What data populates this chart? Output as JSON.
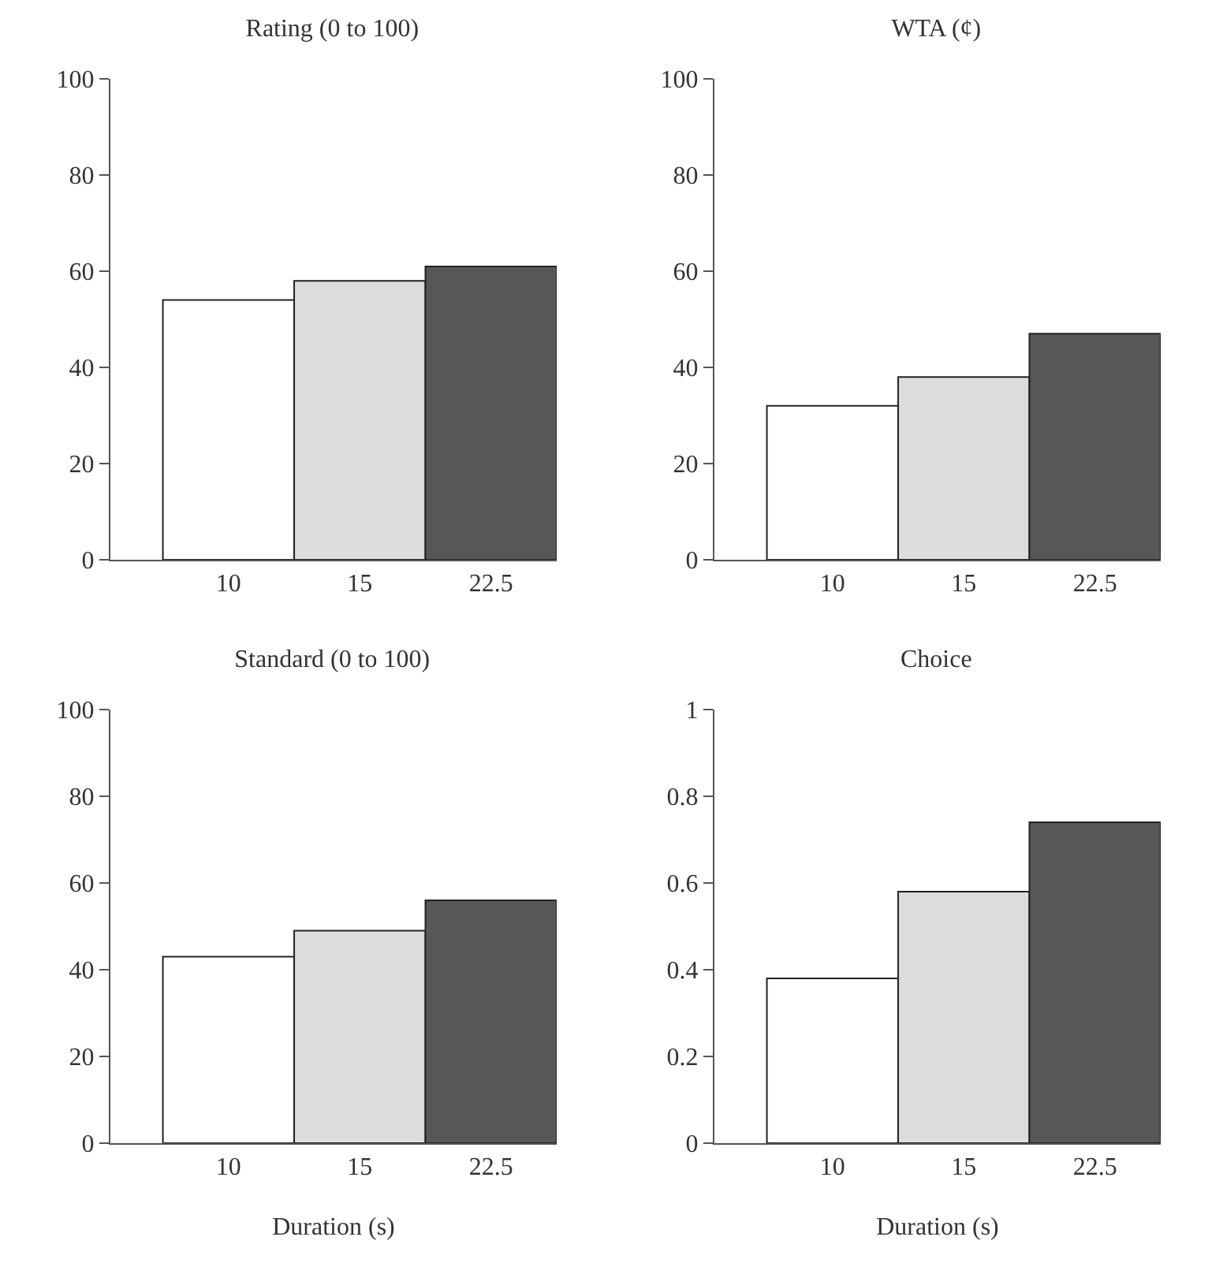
{
  "chart_data": [
    {
      "type": "bar",
      "title": "Rating (0 to 100)",
      "categories": [
        "10",
        "15",
        "22.5"
      ],
      "values": [
        54,
        58,
        61
      ],
      "colors": [
        "#ffffff",
        "#dcdcdc",
        "#575757"
      ],
      "ylim": [
        0,
        100
      ],
      "yticks": [
        0,
        20,
        40,
        60,
        80,
        100
      ],
      "grid": false
    },
    {
      "type": "bar",
      "title": "WTA (¢)",
      "categories": [
        "10",
        "15",
        "22.5"
      ],
      "values": [
        32,
        38,
        47
      ],
      "colors": [
        "#ffffff",
        "#dcdcdc",
        "#575757"
      ],
      "ylim": [
        0,
        100
      ],
      "yticks": [
        0,
        20,
        40,
        60,
        80,
        100
      ],
      "grid": false
    },
    {
      "type": "bar",
      "title": "Standard (0 to 100)",
      "xlabel": "Duration (s)",
      "categories": [
        "10",
        "15",
        "22.5"
      ],
      "values": [
        43,
        49,
        56
      ],
      "colors": [
        "#ffffff",
        "#dcdcdc",
        "#575757"
      ],
      "ylim": [
        0,
        100
      ],
      "yticks": [
        0,
        20,
        40,
        60,
        80,
        100
      ],
      "grid": false
    },
    {
      "type": "bar",
      "title": "Choice",
      "xlabel": "Duration (s)",
      "categories": [
        "10",
        "15",
        "22.5"
      ],
      "values": [
        0.38,
        0.58,
        0.74
      ],
      "colors": [
        "#ffffff",
        "#dcdcdc",
        "#575757"
      ],
      "ylim": [
        0,
        1
      ],
      "yticks": [
        0,
        0.2,
        0.4,
        0.6,
        0.8,
        1
      ],
      "grid": false
    }
  ]
}
